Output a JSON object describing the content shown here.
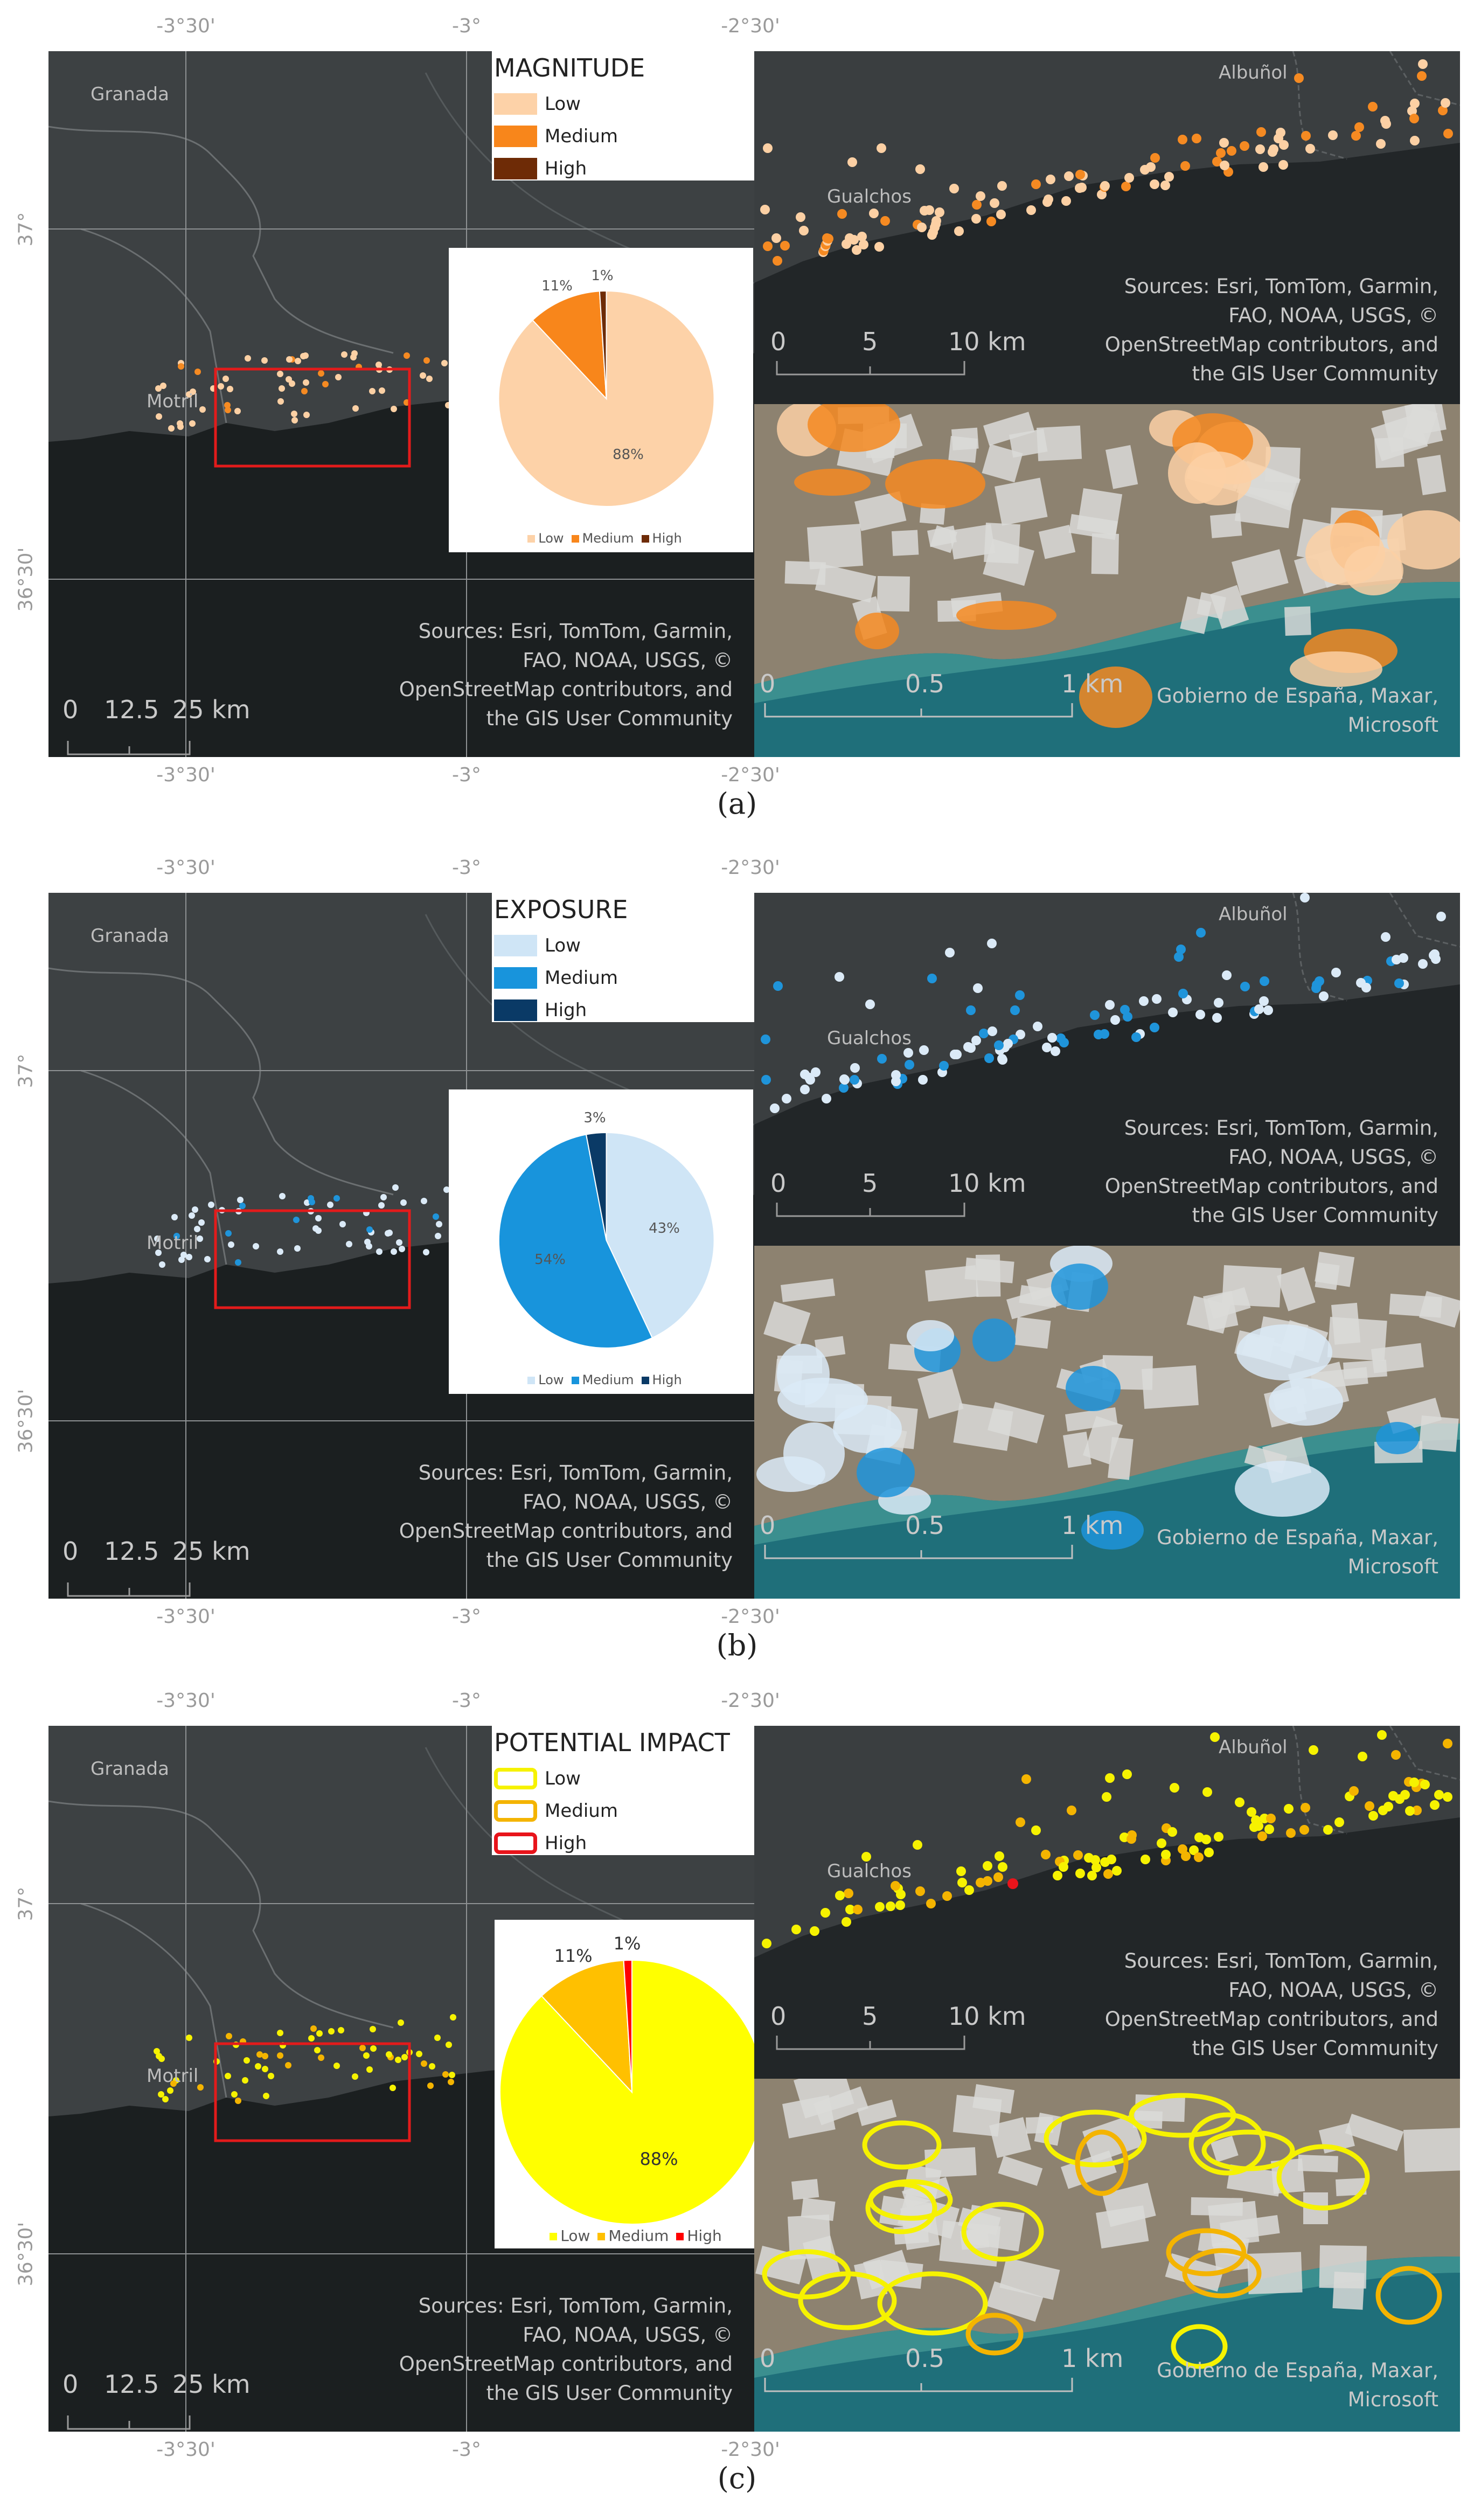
{
  "panels": [
    {
      "id": "a",
      "caption": "(a)",
      "legend": {
        "title": "MAGNITUDE",
        "items": [
          {
            "label": "Low",
            "color": "#fdd2a8",
            "style": "fill"
          },
          {
            "label": "Medium",
            "color": "#f8861b",
            "style": "fill"
          },
          {
            "label": "High",
            "color": "#6e2b06",
            "style": "fill"
          }
        ]
      },
      "pie": {
        "values": [
          88,
          11,
          1
        ],
        "labels": [
          "88%",
          "11%",
          "1%"
        ],
        "legend": [
          "Low",
          "Medium",
          "High"
        ],
        "colors": [
          "#fdd2a8",
          "#f8861b",
          "#6e2b06"
        ],
        "large": false
      },
      "point_colors": [
        "#fcd0a4",
        "#f58a22"
      ]
    },
    {
      "id": "b",
      "caption": "(b)",
      "legend": {
        "title": "EXPOSURE",
        "items": [
          {
            "label": "Low",
            "color": "#cfe5f6",
            "style": "fill"
          },
          {
            "label": "Medium",
            "color": "#1894dc",
            "style": "fill"
          },
          {
            "label": "High",
            "color": "#0a3a66",
            "style": "fill"
          }
        ]
      },
      "pie": {
        "values": [
          43,
          54,
          3
        ],
        "labels": [
          "43%",
          "54%",
          "3%"
        ],
        "legend": [
          "Low",
          "Medium",
          "High"
        ],
        "colors": [
          "#cfe5f6",
          "#1894dc",
          "#0a3a66"
        ],
        "large": false
      },
      "point_colors": [
        "#dbeaf7",
        "#1f94da"
      ]
    },
    {
      "id": "c",
      "caption": "(c)",
      "legend": {
        "title": "POTENTIAL IMPACT",
        "items": [
          {
            "label": "Low",
            "color": "#f6f200",
            "style": "outline"
          },
          {
            "label": "Medium",
            "color": "#f4b400",
            "style": "outline"
          },
          {
            "label": "High",
            "color": "#e8141b",
            "style": "outline"
          }
        ]
      },
      "pie": {
        "values": [
          88,
          11,
          1
        ],
        "labels": [
          "88%",
          "11%",
          "1%"
        ],
        "legend": [
          "Low",
          "Medium",
          "High"
        ],
        "colors": [
          "#ffff00",
          "#ffc000",
          "#ff0000"
        ],
        "large": true
      },
      "point_colors": [
        "#f6f200",
        "#f4b400"
      ]
    }
  ],
  "map_text": {
    "coord_top": [
      "-3°30'",
      "-3°",
      "-2°30'"
    ],
    "coord_left": [
      "37°",
      "36°30'"
    ],
    "places_overview": [
      "Granada",
      "Motril"
    ],
    "places_zoom": [
      "Albuñol",
      "Gualchos"
    ],
    "scale_overview": [
      "0",
      "12.5",
      "25 km"
    ],
    "scale_zoom": [
      "0",
      "5",
      "10 km"
    ],
    "scale_sat": [
      "0",
      "0.5",
      "1 km"
    ],
    "sources_basemap": "Sources: Esri, TomTom, Garmin,\nFAO, NOAA, USGS, ©\nOpenStreetMap contributors, and\nthe GIS User Community",
    "sources_satellite": "Gobierno de España, Maxar,\nMicrosoft"
  }
}
